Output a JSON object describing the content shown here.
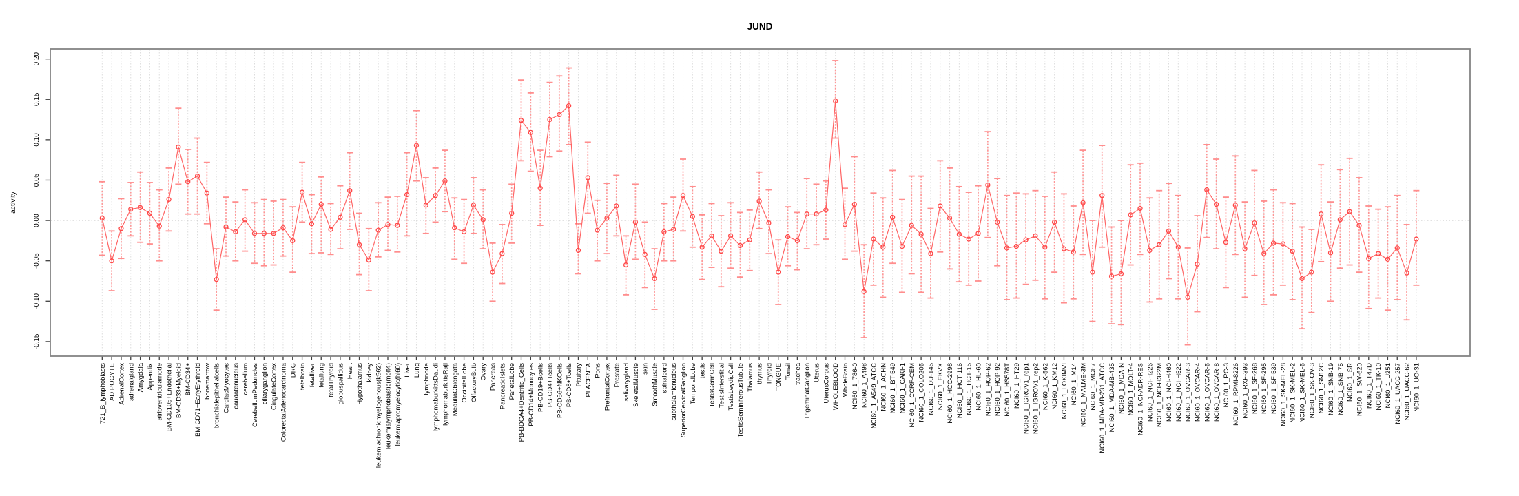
{
  "title": "JUND",
  "ylabel": "activity",
  "colors": {
    "point": "#ff4646",
    "line": "#ff5c5c",
    "error_bar": "#ff8d8d",
    "grid": "#dcdcdc",
    "zero_line": "#cfcfcf",
    "box": "#848484",
    "tick": "#3f3f3f",
    "text": "#000000"
  },
  "chart_data": {
    "type": "line",
    "title": "JUND",
    "xlabel": "",
    "ylabel": "activity",
    "ylim": [
      -0.168,
      0.2125
    ],
    "grid": "vertical dotted gridline per category; dotted horizontal line at 0",
    "legend": "none",
    "marker": "open-circle with confidence-interval error bars",
    "ytick_labels": [
      "0.20",
      "0.15",
      "0.10",
      "0.05",
      "0.00",
      "-0.05",
      "-0.10",
      "-0.15"
    ],
    "ytick_values": [
      0.2,
      0.15,
      0.1,
      0.05,
      0.0,
      -0.05,
      -0.1,
      -0.15
    ],
    "categories": [
      "721_B_lymphoblasts",
      "ADIPOCYTE",
      "AdrenalCortex",
      "adrenalgland",
      "Amygdala",
      "Appendix",
      "atrioventricularnode",
      "BM-CD105+Endothelial",
      "BM-CD33+Myeloid",
      "BM-CD34+",
      "BM-CD71+EarlyErythroid",
      "bonemarrow",
      "bronchialepithelialcells",
      "CardiacMyocytes",
      "caudatenucleus",
      "cerebellum",
      "CerebellumPeduncles",
      "ciliaryganglion",
      "CingulateCortex",
      "ColorectalAdenocarcinoma",
      "DRG",
      "fetalbrain",
      "fetalliver",
      "fetallung",
      "fetalThyroid",
      "globuspallidus",
      "Heart",
      "Hypothalamus",
      "kidney",
      "leukemiachronicmyelogenous(k562)",
      "leukemialymphoblastic(molt4)",
      "leukemiapromyelocytic(hl60)",
      "Liver",
      "Lung",
      "lymphnode",
      "lymphomaburkittsDaudi",
      "lymphomaburkittsRaji",
      "MedullaOblongata",
      "OccipitalLobe",
      "OlfactoryBulb",
      "Ovary",
      "Pancreas",
      "PancreaticIslets",
      "ParietalLobe",
      "PB-BDCA4+Dentritic_Cells",
      "PB-CD14+Monocytes",
      "PB-CD19+Bcells",
      "PB-CD4+Tcells",
      "PB-CD56+NKCells",
      "PB-CD8+Tcells",
      "Pituitary",
      "PLACENTA",
      "Pons",
      "PrefrontalCortex",
      "Prostate",
      "salivarygland",
      "SkeletalMuscle",
      "skin",
      "SmoothMuscle",
      "spinalcord",
      "subthalamicnucleus",
      "SuperiorCervicalGanglion",
      "TemporalLobe",
      "testis",
      "TestisGermCell",
      "TestisInterstitial",
      "TestisLeydigCell",
      "TestisSeminiferousTubule",
      "Thalamus",
      "thymus",
      "Thyroid",
      "TONGUE",
      "Tonsil",
      "trachea",
      "TrigeminalGanglion",
      "Uterus",
      "UterusCorpus",
      "WHOLEBLOOD",
      "WholeBrain",
      "NCI60_1_786-0",
      "NCI60_1_A498",
      "NCI60_1_A549_ATCC",
      "NCI60_1_ACHN",
      "NCI60_1_BT-549",
      "NCI60_1_CAKI-1",
      "NCI60_1_CCRF-CEM",
      "NCI60_1_COLO205",
      "NCI60_1_DU-145",
      "NCI60_1_EKVX",
      "NCI60_1_HCC-2998",
      "NCI60_1_HCT-116",
      "NCI60_1_HCT-15",
      "NCI60_1_HL-60",
      "NCI60_1_HOP-62",
      "NCI60_1_HOP-92",
      "NCI60_1_HS578T",
      "NCI60_1_HT29",
      "NCI60_1_IGROV1_rep1",
      "NCI60_1_IGROV1_rep2",
      "NCI60_1_K-562",
      "NCI60_1_KM12",
      "NCI60_1_LOXIMVI",
      "NCI60_1_M14",
      "NCI60_1_MALME-3M",
      "NCI60_1_MCF7",
      "NCI60_1_MDA-MB-231_ATCC",
      "NCI60_1_MDA-MB-435",
      "NCI60_1_MDA-N",
      "NCI60_1_MOLT-4",
      "NCI60_1_NCI-ADR-RES",
      "NCI60_1_NCI-H226",
      "NCI60_1_NCI-H322M",
      "NCI60_1_NCI-H460",
      "NCI60_1_NCI-H522",
      "NCI60_1_OVCAR-3",
      "NCI60_1_OVCAR-4",
      "NCI60_1_OVCAR-5",
      "NCI60_1_OVCAR-8",
      "NCI60_1_PC-3",
      "NCI60_1_RPMI-8226",
      "NCI60_1_RXF-393",
      "NCI60_1_SF-268",
      "NCI60_1_SF-295",
      "NCI60_1_SF-539",
      "NCI60_1_SK-MEL-28",
      "NCI60_1_SK-MEL-2",
      "NCI60_1_SK-MEL-5",
      "NCI60_1_SK-OV-3",
      "NCI60_1_SN12C",
      "NCI60_1_SNB-19",
      "NCI60_1_SNB-75",
      "NCI60_1_SR",
      "NCI60_1_SW-620",
      "NCI60_1_T47D",
      "NCI60_1_TK-10",
      "NCI60_1_U251",
      "NCI60_1_UACC-257",
      "NCI60_1_UACC-62",
      "NCI60_1_UO-31"
    ],
    "series": [
      {
        "name": "activity",
        "values": [
          0.003,
          -0.05,
          -0.01,
          0.014,
          0.016,
          0.009,
          -0.007,
          0.026,
          0.091,
          0.048,
          0.055,
          0.034,
          -0.073,
          -0.008,
          -0.014,
          0.001,
          -0.016,
          -0.016,
          -0.016,
          -0.009,
          -0.025,
          0.035,
          -0.004,
          0.02,
          -0.011,
          0.004,
          0.037,
          -0.03,
          -0.049,
          -0.012,
          -0.005,
          -0.006,
          0.032,
          0.093,
          0.019,
          0.031,
          0.049,
          -0.009,
          -0.014,
          0.019,
          0.001,
          -0.064,
          -0.041,
          0.009,
          0.124,
          0.109,
          0.04,
          0.125,
          0.131,
          0.142,
          -0.037,
          0.053,
          -0.012,
          0.003,
          0.018,
          -0.055,
          -0.002,
          -0.042,
          -0.072,
          -0.014,
          -0.011,
          0.031,
          0.005,
          -0.033,
          -0.019,
          -0.038,
          -0.019,
          -0.031,
          -0.024,
          0.024,
          -0.003,
          -0.064,
          -0.02,
          -0.025,
          0.008,
          0.008,
          0.013,
          0.148,
          -0.005,
          0.02,
          -0.088,
          -0.023,
          -0.033,
          0.004,
          -0.032,
          -0.006,
          -0.017,
          -0.041,
          0.018,
          0.003,
          -0.017,
          -0.023,
          -0.016,
          0.044,
          -0.002,
          -0.034,
          -0.032,
          -0.024,
          -0.019,
          -0.033,
          -0.002,
          -0.035,
          -0.039,
          0.022,
          -0.064,
          0.031,
          -0.069,
          -0.066,
          0.007,
          0.015,
          -0.037,
          -0.03,
          -0.013,
          -0.033,
          -0.095,
          -0.054,
          0.038,
          0.02,
          -0.027,
          0.019,
          -0.035,
          -0.003,
          -0.041,
          -0.028,
          -0.029,
          -0.038,
          -0.072,
          -0.064,
          0.008,
          -0.04,
          0.001,
          0.011,
          -0.006,
          -0.047,
          -0.041,
          -0.048,
          -0.034,
          -0.065,
          -0.023
        ],
        "ci_low": [
          -0.043,
          -0.087,
          -0.047,
          -0.019,
          -0.027,
          -0.029,
          -0.05,
          -0.013,
          0.045,
          0.008,
          0.008,
          -0.004,
          -0.111,
          -0.044,
          -0.05,
          -0.038,
          -0.053,
          -0.056,
          -0.055,
          -0.044,
          -0.064,
          -0.002,
          -0.041,
          -0.04,
          -0.042,
          -0.035,
          -0.011,
          -0.067,
          -0.087,
          -0.045,
          -0.037,
          -0.039,
          -0.019,
          0.049,
          -0.016,
          -0.002,
          0.011,
          -0.048,
          -0.053,
          -0.016,
          -0.035,
          -0.1,
          -0.078,
          -0.028,
          0.074,
          0.061,
          -0.006,
          0.079,
          0.086,
          0.094,
          -0.066,
          0.009,
          -0.05,
          -0.041,
          -0.019,
          -0.092,
          -0.048,
          -0.083,
          -0.11,
          -0.05,
          -0.05,
          -0.013,
          -0.033,
          -0.073,
          -0.058,
          -0.082,
          -0.059,
          -0.07,
          -0.062,
          -0.01,
          -0.041,
          -0.104,
          -0.056,
          -0.061,
          -0.035,
          -0.03,
          -0.023,
          0.102,
          -0.048,
          -0.038,
          -0.145,
          -0.08,
          -0.095,
          -0.053,
          -0.089,
          -0.066,
          -0.089,
          -0.096,
          -0.039,
          -0.06,
          -0.076,
          -0.08,
          -0.075,
          -0.021,
          -0.056,
          -0.098,
          -0.096,
          -0.079,
          -0.074,
          -0.097,
          -0.064,
          -0.102,
          -0.097,
          -0.042,
          -0.125,
          -0.033,
          -0.128,
          -0.129,
          -0.055,
          -0.042,
          -0.101,
          -0.097,
          -0.072,
          -0.097,
          -0.154,
          -0.113,
          -0.021,
          -0.035,
          -0.083,
          -0.042,
          -0.095,
          -0.068,
          -0.104,
          -0.092,
          -0.08,
          -0.098,
          -0.134,
          -0.114,
          -0.051,
          -0.1,
          -0.059,
          -0.055,
          -0.064,
          -0.109,
          -0.096,
          -0.111,
          -0.098,
          -0.123,
          -0.08
        ],
        "ci_high": [
          0.048,
          -0.013,
          0.027,
          0.047,
          0.06,
          0.047,
          0.038,
          0.065,
          0.139,
          0.088,
          0.102,
          0.072,
          -0.035,
          0.029,
          0.023,
          0.038,
          0.022,
          0.026,
          0.024,
          0.026,
          0.017,
          0.072,
          0.032,
          0.054,
          0.021,
          0.043,
          0.084,
          0.009,
          -0.01,
          0.022,
          0.029,
          0.03,
          0.084,
          0.136,
          0.053,
          0.065,
          0.087,
          0.028,
          0.026,
          0.053,
          0.038,
          -0.028,
          -0.005,
          0.045,
          0.174,
          0.158,
          0.087,
          0.171,
          0.179,
          0.189,
          -0.004,
          0.097,
          0.025,
          0.046,
          0.056,
          -0.019,
          0.045,
          -0.002,
          -0.035,
          0.021,
          0.029,
          0.076,
          0.042,
          0.007,
          0.021,
          0.006,
          0.022,
          0.01,
          0.013,
          0.06,
          0.038,
          -0.024,
          0.017,
          0.01,
          0.052,
          0.045,
          0.049,
          0.198,
          0.04,
          0.079,
          -0.03,
          0.034,
          0.028,
          0.062,
          0.026,
          0.055,
          0.055,
          0.015,
          0.074,
          0.065,
          0.042,
          0.035,
          0.043,
          0.11,
          0.052,
          0.031,
          0.034,
          0.033,
          0.037,
          0.03,
          0.06,
          0.033,
          0.018,
          0.087,
          0.0,
          0.093,
          -0.008,
          0.0,
          0.069,
          0.071,
          0.028,
          0.037,
          0.046,
          0.031,
          -0.034,
          0.006,
          0.094,
          0.076,
          0.029,
          0.08,
          0.023,
          0.062,
          0.024,
          0.038,
          0.022,
          0.021,
          -0.008,
          -0.011,
          0.069,
          0.023,
          0.063,
          0.077,
          0.053,
          0.018,
          0.014,
          0.017,
          0.031,
          -0.005,
          0.037
        ]
      }
    ]
  }
}
